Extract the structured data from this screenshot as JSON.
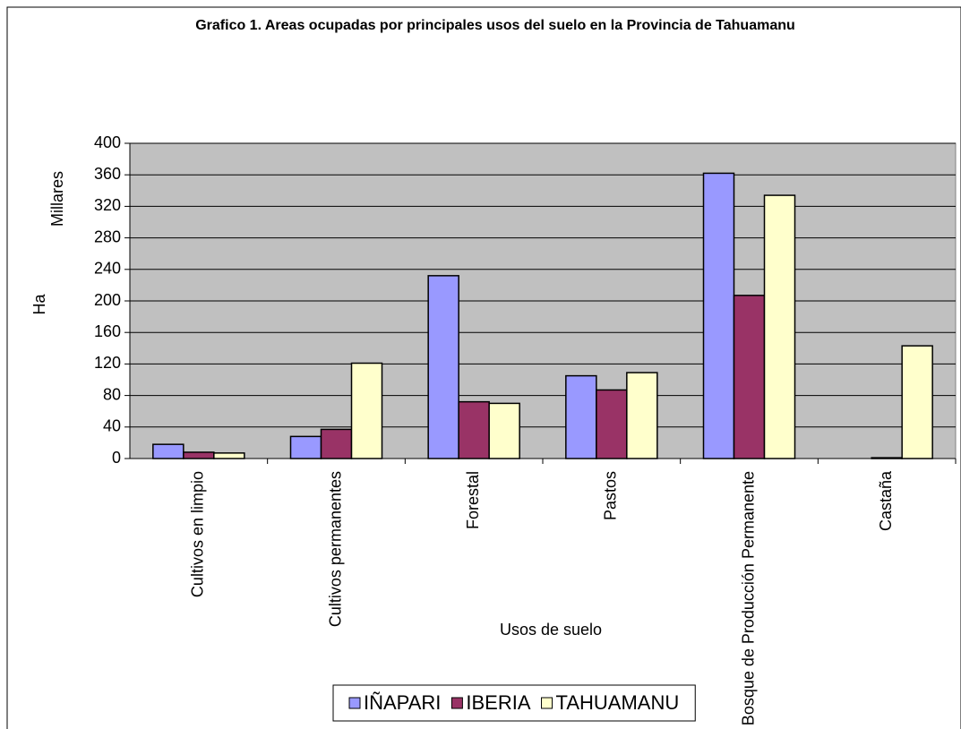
{
  "chart_data": {
    "type": "bar",
    "title": "Grafico 1. Areas ocupadas por principales usos del suelo en la Provincia de Tahuamanu",
    "ylabel": "Ha",
    "yunits": "Millares",
    "xlabel": "Usos de suelo",
    "categories": [
      "Cultivos en limpio",
      "Cultivos permanentes",
      "Forestal",
      "Pastos",
      "Bosque de Producción Permanente",
      "Castaña"
    ],
    "series": [
      {
        "name": "IÑAPARI",
        "color": "#9999ff",
        "values": [
          18,
          28,
          232,
          105,
          362,
          0
        ]
      },
      {
        "name": "IBERIA",
        "color": "#993366",
        "values": [
          8,
          37,
          72,
          87,
          207,
          1
        ]
      },
      {
        "name": "TAHUAMANU",
        "color": "#ffffcc",
        "values": [
          7,
          121,
          70,
          109,
          334,
          143
        ]
      }
    ],
    "ylim": [
      0,
      400
    ],
    "yticks": [
      0,
      40,
      80,
      120,
      160,
      200,
      240,
      280,
      320,
      360,
      400
    ],
    "grid": true,
    "plot_background": "#c0c0c0",
    "legend": "bottom"
  }
}
